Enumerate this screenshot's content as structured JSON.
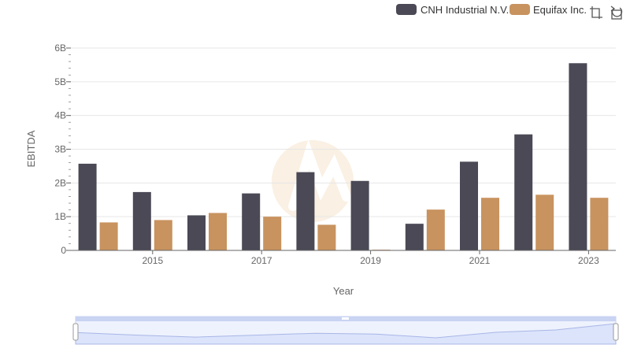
{
  "chart_data": {
    "type": "bar",
    "xlabel": "Year",
    "ylabel": "EBITDA",
    "ylim": [
      0,
      6000000000
    ],
    "y_ticks": [
      {
        "value": 0,
        "label": "0"
      },
      {
        "value": 1000000000,
        "label": "1B"
      },
      {
        "value": 2000000000,
        "label": "2B"
      },
      {
        "value": 3000000000,
        "label": "3B"
      },
      {
        "value": 4000000000,
        "label": "4B"
      },
      {
        "value": 5000000000,
        "label": "5B"
      },
      {
        "value": 6000000000,
        "label": "6B"
      }
    ],
    "categories": [
      2014,
      2015,
      2016,
      2017,
      2018,
      2019,
      2020,
      2021,
      2022,
      2023
    ],
    "x_tick_labels": [
      {
        "year": 2015,
        "label": "2015"
      },
      {
        "year": 2017,
        "label": "2017"
      },
      {
        "year": 2019,
        "label": "2019"
      },
      {
        "year": 2021,
        "label": "2021"
      },
      {
        "year": 2023,
        "label": "2023"
      }
    ],
    "series": [
      {
        "name": "CNH Industrial N.V.",
        "color": "#4a4955",
        "values": [
          2570000000,
          1730000000,
          1040000000,
          1690000000,
          2320000000,
          2060000000,
          790000000,
          2630000000,
          3440000000,
          5550000000
        ]
      },
      {
        "name": "Equifax Inc.",
        "color": "#c8935f",
        "values": [
          830000000,
          900000000,
          1110000000,
          1000000000,
          760000000,
          20000000,
          1210000000,
          1560000000,
          1650000000,
          1560000000
        ]
      }
    ],
    "grid": true,
    "legend_position": "top-right"
  },
  "toolbar": {
    "tools": [
      {
        "name": "zoom-select-icon"
      },
      {
        "name": "reset-zoom-icon"
      }
    ]
  },
  "colors": {
    "grid": "#e6e6e6",
    "axis": "#666666",
    "navigator_fill": "#dfe6fb",
    "navigator_line": "#a9b6e6",
    "watermark": "#f4e3cf"
  }
}
